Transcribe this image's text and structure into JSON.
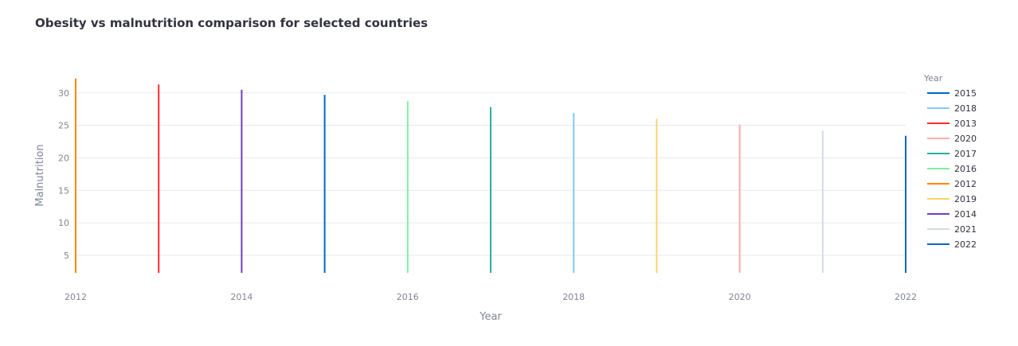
{
  "chart_data": {
    "type": "line",
    "title": "Obesity vs malnutrition comparison for selected countries",
    "xlabel": "Year",
    "ylabel": "Malnutrition",
    "xlim": [
      2012,
      2022
    ],
    "ylim": [
      2.3,
      32.3
    ],
    "x_ticks": [
      2012,
      2014,
      2016,
      2018,
      2020,
      2022
    ],
    "y_ticks": [
      5,
      10,
      15,
      20,
      25,
      30
    ],
    "grid": true,
    "legend_title": "Year",
    "legend_position": "right",
    "legend_order": [
      "2015",
      "2018",
      "2013",
      "2020",
      "2017",
      "2016",
      "2012",
      "2019",
      "2014",
      "2021",
      "2022"
    ],
    "series": [
      {
        "name": "2012",
        "color": "#ff8700",
        "x": [
          2012,
          2012
        ],
        "y": [
          2.3,
          32.2
        ]
      },
      {
        "name": "2013",
        "color": "#ff2b2b",
        "x": [
          2013,
          2013
        ],
        "y": [
          2.3,
          31.3
        ]
      },
      {
        "name": "2014",
        "color": "#6d3fc0",
        "x": [
          2014,
          2014
        ],
        "y": [
          2.3,
          30.5
        ]
      },
      {
        "name": "2015",
        "color": "#0068c9",
        "x": [
          2015,
          2015
        ],
        "y": [
          2.3,
          29.7
        ]
      },
      {
        "name": "2016",
        "color": "#7defa1",
        "x": [
          2016,
          2016
        ],
        "y": [
          2.3,
          28.7
        ]
      },
      {
        "name": "2017",
        "color": "#29b09d",
        "x": [
          2017,
          2017
        ],
        "y": [
          2.3,
          27.8
        ]
      },
      {
        "name": "2018",
        "color": "#83c9ff",
        "x": [
          2018,
          2018
        ],
        "y": [
          2.3,
          26.9
        ]
      },
      {
        "name": "2019",
        "color": "#ffd16a",
        "x": [
          2019,
          2019
        ],
        "y": [
          2.3,
          26.0
        ]
      },
      {
        "name": "2020",
        "color": "#ffabab",
        "x": [
          2020,
          2020
        ],
        "y": [
          2.3,
          25.1
        ]
      },
      {
        "name": "2021",
        "color": "#d5dae5",
        "x": [
          2021,
          2021
        ],
        "y": [
          2.3,
          24.2
        ]
      },
      {
        "name": "2022",
        "color": "#0068c9",
        "x": [
          2022,
          2022
        ],
        "y": [
          2.3,
          23.4
        ]
      }
    ]
  }
}
